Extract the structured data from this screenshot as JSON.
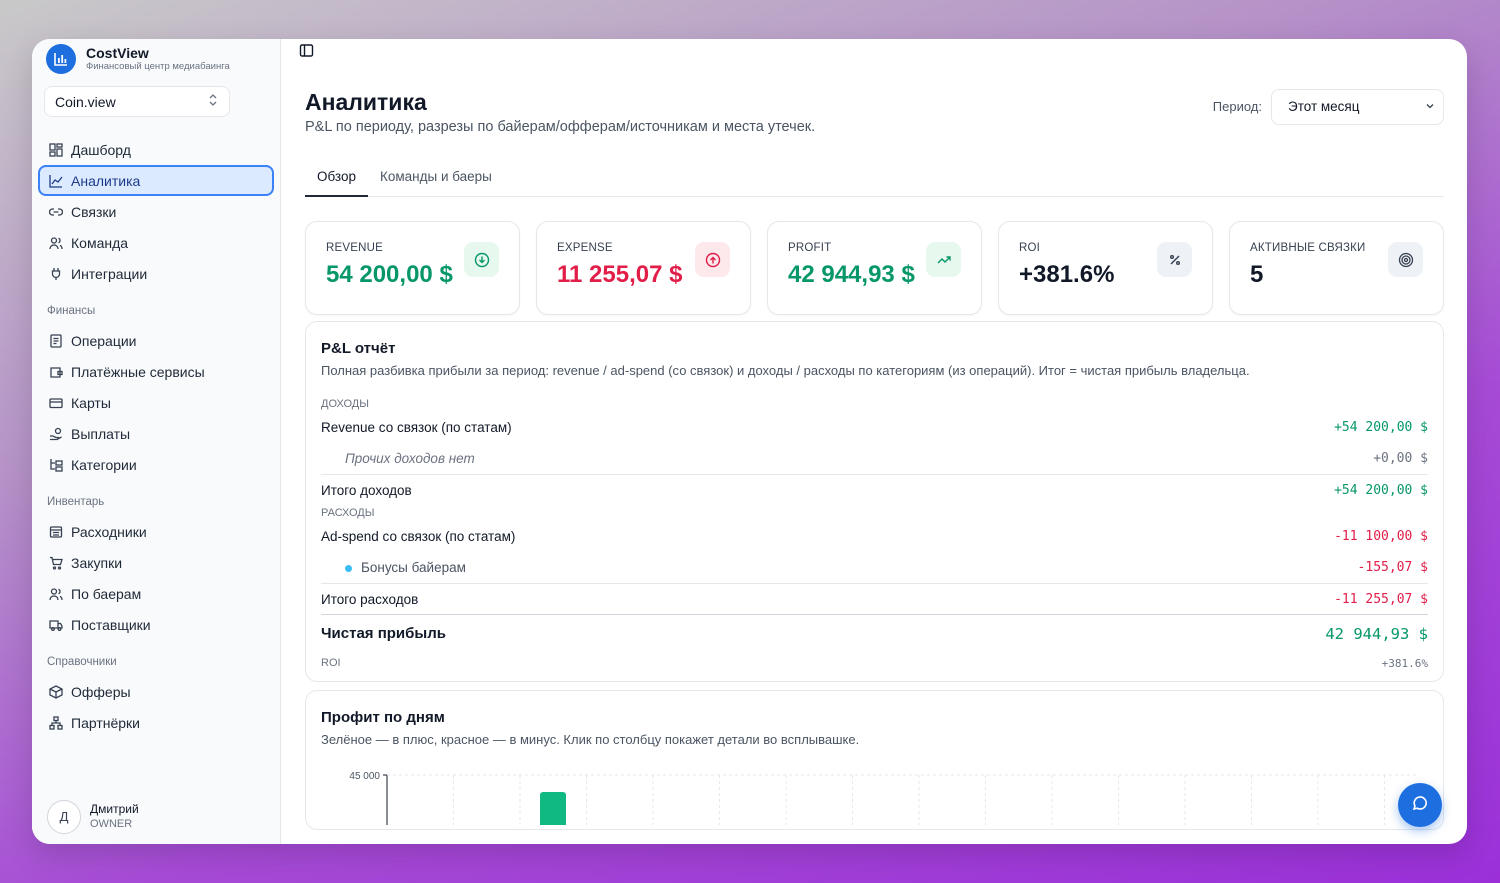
{
  "brand": {
    "title": "CostView",
    "subtitle": "Финансовый центр медиабаинга"
  },
  "workspace": {
    "value": "Coin.view"
  },
  "sidebar": {
    "main": [
      {
        "label": "Дашборд",
        "icon": "dashboard-icon"
      },
      {
        "label": "Аналитика",
        "icon": "chart-line-icon",
        "active": true
      },
      {
        "label": "Связки",
        "icon": "link-icon"
      },
      {
        "label": "Команда",
        "icon": "users-icon"
      },
      {
        "label": "Интеграции",
        "icon": "plug-icon"
      }
    ],
    "finance_title": "Финансы",
    "finance": [
      {
        "label": "Операции",
        "icon": "receipt-icon"
      },
      {
        "label": "Платёжные сервисы",
        "icon": "wallet-icon"
      },
      {
        "label": "Карты",
        "icon": "credit-card-icon"
      },
      {
        "label": "Выплаты",
        "icon": "hand-coins-icon"
      },
      {
        "label": "Категории",
        "icon": "folder-tree-icon"
      }
    ],
    "inventory_title": "Инвентарь",
    "inventory": [
      {
        "label": "Расходники",
        "icon": "box-icon"
      },
      {
        "label": "Закупки",
        "icon": "cart-icon"
      },
      {
        "label": "По баерам",
        "icon": "users-icon"
      },
      {
        "label": "Поставщики",
        "icon": "truck-icon"
      }
    ],
    "refs_title": "Справочники",
    "refs": [
      {
        "label": "Офферы",
        "icon": "package-icon"
      },
      {
        "label": "Партнёрки",
        "icon": "network-icon"
      }
    ]
  },
  "user": {
    "initial": "Д",
    "name": "Дмитрий",
    "role": "OWNER"
  },
  "page": {
    "title": "Аналитика",
    "subtitle": "P&L по периоду, разрезы по байерам/офферам/источникам и места утечек.",
    "period_label": "Период:",
    "period_value": "Этот месяц"
  },
  "tabs": [
    {
      "label": "Обзор",
      "active": true
    },
    {
      "label": "Команды и баеры"
    }
  ],
  "cards": [
    {
      "label": "REVENUE",
      "value": "54 200,00 $",
      "color": "#059669",
      "icon": "arrow-down-circle-icon"
    },
    {
      "label": "EXPENSE",
      "value": "11 255,07 $",
      "color": "#e11d48",
      "icon": "arrow-up-circle-icon"
    },
    {
      "label": "PROFIT",
      "value": "42 944,93 $",
      "color": "#059669",
      "icon": "trending-up-icon"
    },
    {
      "label": "ROI",
      "value": "+381.6%",
      "color": "#111827",
      "icon": "percent-icon"
    },
    {
      "label": "АКТИВНЫЕ СВЯЗКИ",
      "value": "5",
      "color": "#111827",
      "icon": "target-icon"
    }
  ],
  "pl": {
    "title": "P&L отчёт",
    "subtitle": "Полная разбивка прибыли за период: revenue / ad-spend (со связок) и доходы / расходы по категориям (из операций). Итог = чистая прибыль владельца.",
    "income_title": "ДОХОДЫ",
    "revenue_label": "Revenue со связок (по статам)",
    "revenue_value": "+54 200,00 $",
    "other_income_label": "Прочих доходов нет",
    "other_income_value": "+0,00 $",
    "income_total_label": "Итого доходов",
    "income_total_value": "+54 200,00 $",
    "expense_title": "РАСХОДЫ",
    "adspend_label": "Ad-spend со связок (по статам)",
    "adspend_value": "-11 100,00 $",
    "bonus_label": "Бонусы байерам",
    "bonus_value": "-155,07 $",
    "expense_total_label": "Итого расходов",
    "expense_total_value": "-11 255,07 $",
    "net_label": "Чистая прибыль",
    "net_value": "42 944,93 $",
    "roi_label": "ROI",
    "roi_value": "+381.6%"
  },
  "daily": {
    "title": "Профит по дням",
    "subtitle": "Зелёное — в плюс, красное — в минус. Клик по столбцу покажет детали во всплывашке."
  },
  "chart_data": {
    "type": "bar",
    "y_tick_top": "45 000",
    "bars_visible": [
      {
        "sign": "positive"
      }
    ]
  },
  "colors": {
    "accent": "#1d6fe0",
    "positive": "#059669",
    "negative": "#e11d48"
  }
}
